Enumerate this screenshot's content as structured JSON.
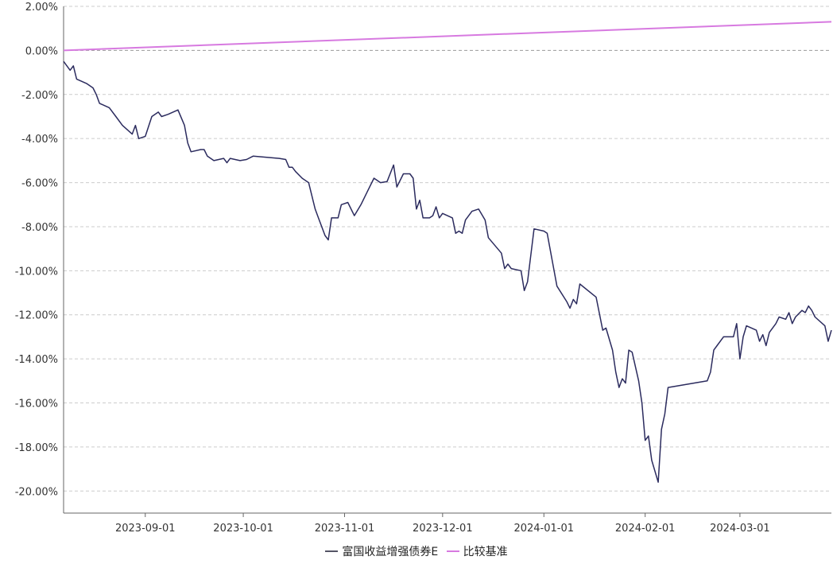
{
  "chart_data": {
    "type": "line",
    "title": "",
    "xlabel": "",
    "ylabel": "",
    "x_range": [
      "2023-08-07",
      "2024-03-29"
    ],
    "ylim": [
      -21,
      2
    ],
    "y_ticks": [
      2,
      0,
      -2,
      -4,
      -6,
      -8,
      -10,
      -12,
      -14,
      -16,
      -18,
      -20
    ],
    "y_tick_labels": [
      "2.00%",
      "0.00%",
      "-2.00%",
      "-4.00%",
      "-6.00%",
      "-8.00%",
      "-10.00%",
      "-12.00%",
      "-14.00%",
      "-16.00%",
      "-18.00%",
      "-20.00%"
    ],
    "x_ticks": [
      "2023-09-01",
      "2023-10-01",
      "2023-11-01",
      "2023-12-01",
      "2024-01-01",
      "2024-02-01",
      "2024-03-01"
    ],
    "grid": true,
    "legend_position": "bottom",
    "series": [
      {
        "name": "富国收益增强债券E",
        "color": "#2b2b5e",
        "points": [
          [
            "2023-08-07",
            -0.5
          ],
          [
            "2023-08-09",
            -0.9
          ],
          [
            "2023-08-10",
            -0.7
          ],
          [
            "2023-08-11",
            -1.3
          ],
          [
            "2023-08-14",
            -1.5
          ],
          [
            "2023-08-16",
            -1.7
          ],
          [
            "2023-08-17",
            -2.0
          ],
          [
            "2023-08-18",
            -2.4
          ],
          [
            "2023-08-21",
            -2.6
          ],
          [
            "2023-08-23",
            -3.0
          ],
          [
            "2023-08-25",
            -3.4
          ],
          [
            "2023-08-28",
            -3.8
          ],
          [
            "2023-08-29",
            -3.4
          ],
          [
            "2023-08-30",
            -4.0
          ],
          [
            "2023-09-01",
            -3.9
          ],
          [
            "2023-09-03",
            -3.0
          ],
          [
            "2023-09-05",
            -2.8
          ],
          [
            "2023-09-06",
            -3.0
          ],
          [
            "2023-09-08",
            -2.9
          ],
          [
            "2023-09-11",
            -2.7
          ],
          [
            "2023-09-13",
            -3.4
          ],
          [
            "2023-09-14",
            -4.2
          ],
          [
            "2023-09-15",
            -4.6
          ],
          [
            "2023-09-18",
            -4.5
          ],
          [
            "2023-09-19",
            -4.5
          ],
          [
            "2023-09-20",
            -4.8
          ],
          [
            "2023-09-22",
            -5.0
          ],
          [
            "2023-09-25",
            -4.9
          ],
          [
            "2023-09-26",
            -5.1
          ],
          [
            "2023-09-27",
            -4.9
          ],
          [
            "2023-09-30",
            -5.0
          ],
          [
            "2023-10-02",
            -4.95
          ],
          [
            "2023-10-04",
            -4.8
          ],
          [
            "2023-10-12",
            -4.9
          ],
          [
            "2023-10-14",
            -4.95
          ],
          [
            "2023-10-15",
            -5.3
          ],
          [
            "2023-10-16",
            -5.3
          ],
          [
            "2023-10-17",
            -5.5
          ],
          [
            "2023-10-19",
            -5.8
          ],
          [
            "2023-10-21",
            -6.0
          ],
          [
            "2023-10-23",
            -7.2
          ],
          [
            "2023-10-24",
            -7.6
          ],
          [
            "2023-10-26",
            -8.4
          ],
          [
            "2023-10-27",
            -8.6
          ],
          [
            "2023-10-28",
            -7.6
          ],
          [
            "2023-10-30",
            -7.6
          ],
          [
            "2023-10-31",
            -7.0
          ],
          [
            "2023-11-02",
            -6.9
          ],
          [
            "2023-11-04",
            -7.5
          ],
          [
            "2023-11-06",
            -7.0
          ],
          [
            "2023-11-08",
            -6.4
          ],
          [
            "2023-11-10",
            -5.8
          ],
          [
            "2023-11-12",
            -6.0
          ],
          [
            "2023-11-14",
            -5.95
          ],
          [
            "2023-11-16",
            -5.2
          ],
          [
            "2023-11-17",
            -6.2
          ],
          [
            "2023-11-19",
            -5.6
          ],
          [
            "2023-11-21",
            -5.6
          ],
          [
            "2023-11-22",
            -5.8
          ],
          [
            "2023-11-23",
            -7.2
          ],
          [
            "2023-11-24",
            -6.8
          ],
          [
            "2023-11-25",
            -7.6
          ],
          [
            "2023-11-27",
            -7.6
          ],
          [
            "2023-11-28",
            -7.5
          ],
          [
            "2023-11-29",
            -7.1
          ],
          [
            "2023-11-30",
            -7.6
          ],
          [
            "2023-12-01",
            -7.4
          ],
          [
            "2023-12-04",
            -7.6
          ],
          [
            "2023-12-05",
            -8.3
          ],
          [
            "2023-12-06",
            -8.2
          ],
          [
            "2023-12-07",
            -8.3
          ],
          [
            "2023-12-08",
            -7.7
          ],
          [
            "2023-12-10",
            -7.3
          ],
          [
            "2023-12-12",
            -7.2
          ],
          [
            "2023-12-14",
            -7.7
          ],
          [
            "2023-12-15",
            -8.5
          ],
          [
            "2023-12-19",
            -9.2
          ],
          [
            "2023-12-20",
            -9.9
          ],
          [
            "2023-12-21",
            -9.7
          ],
          [
            "2023-12-22",
            -9.9
          ],
          [
            "2023-12-25",
            -10.0
          ],
          [
            "2023-12-26",
            -10.9
          ],
          [
            "2023-12-27",
            -10.5
          ],
          [
            "2023-12-29",
            -8.1
          ],
          [
            "2024-01-01",
            -8.2
          ],
          [
            "2024-01-02",
            -8.3
          ],
          [
            "2024-01-05",
            -10.7
          ],
          [
            "2024-01-08",
            -11.4
          ],
          [
            "2024-01-09",
            -11.7
          ],
          [
            "2024-01-10",
            -11.3
          ],
          [
            "2024-01-11",
            -11.5
          ],
          [
            "2024-01-12",
            -10.6
          ],
          [
            "2024-01-17",
            -11.2
          ],
          [
            "2024-01-19",
            -12.7
          ],
          [
            "2024-01-20",
            -12.6
          ],
          [
            "2024-01-22",
            -13.6
          ],
          [
            "2024-01-23",
            -14.6
          ],
          [
            "2024-01-24",
            -15.3
          ],
          [
            "2024-01-25",
            -14.9
          ],
          [
            "2024-01-26",
            -15.1
          ],
          [
            "2024-01-27",
            -13.6
          ],
          [
            "2024-01-28",
            -13.7
          ],
          [
            "2024-01-30",
            -15.0
          ],
          [
            "2024-01-31",
            -16.0
          ],
          [
            "2024-02-01",
            -17.7
          ],
          [
            "2024-02-02",
            -17.5
          ],
          [
            "2024-02-03",
            -18.6
          ],
          [
            "2024-02-05",
            -19.6
          ],
          [
            "2024-02-06",
            -17.2
          ],
          [
            "2024-02-07",
            -16.5
          ],
          [
            "2024-02-08",
            -15.3
          ],
          [
            "2024-02-20",
            -15.0
          ],
          [
            "2024-02-21",
            -14.6
          ],
          [
            "2024-02-22",
            -13.6
          ],
          [
            "2024-02-23",
            -13.4
          ],
          [
            "2024-02-25",
            -13.0
          ],
          [
            "2024-02-28",
            -13.0
          ],
          [
            "2024-02-29",
            -12.4
          ],
          [
            "2024-03-01",
            -14.0
          ],
          [
            "2024-03-02",
            -13.0
          ],
          [
            "2024-03-03",
            -12.5
          ],
          [
            "2024-03-06",
            -12.7
          ],
          [
            "2024-03-07",
            -13.2
          ],
          [
            "2024-03-08",
            -12.9
          ],
          [
            "2024-03-09",
            -13.4
          ],
          [
            "2024-03-10",
            -12.8
          ],
          [
            "2024-03-12",
            -12.4
          ],
          [
            "2024-03-13",
            -12.1
          ],
          [
            "2024-03-15",
            -12.2
          ],
          [
            "2024-03-16",
            -11.9
          ],
          [
            "2024-03-17",
            -12.4
          ],
          [
            "2024-03-18",
            -12.1
          ],
          [
            "2024-03-20",
            -11.8
          ],
          [
            "2024-03-21",
            -11.9
          ],
          [
            "2024-03-22",
            -11.6
          ],
          [
            "2024-03-23",
            -11.8
          ],
          [
            "2024-03-24",
            -12.1
          ],
          [
            "2024-03-27",
            -12.5
          ],
          [
            "2024-03-28",
            -13.2
          ],
          [
            "2024-03-29",
            -12.7
          ]
        ]
      },
      {
        "name": "比较基准",
        "color": "#d77ae0",
        "points": [
          [
            "2023-08-07",
            0.0
          ],
          [
            "2024-03-29",
            1.3
          ]
        ]
      }
    ]
  }
}
